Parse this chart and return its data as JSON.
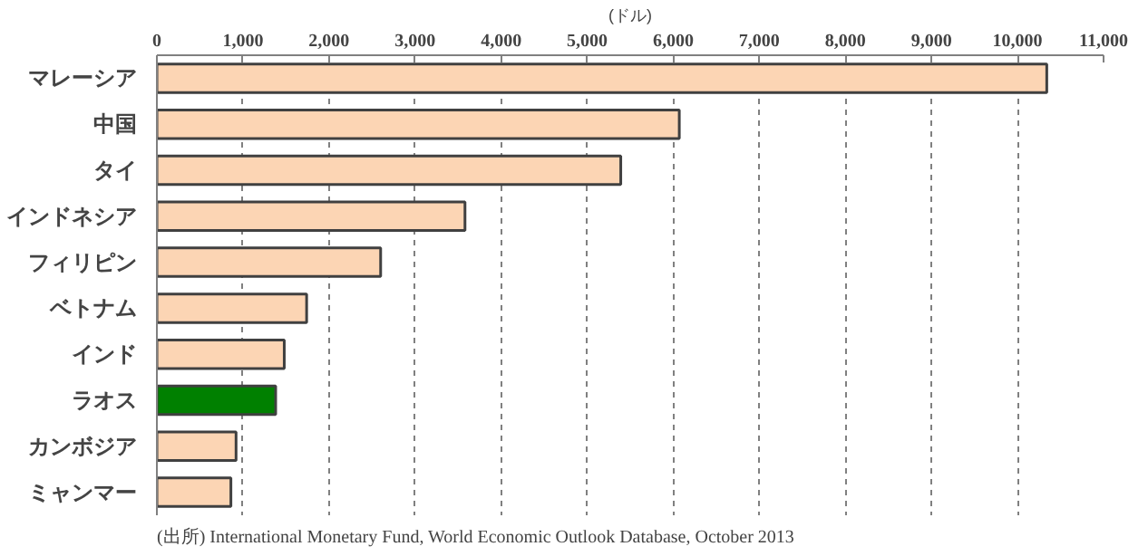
{
  "chart_data": {
    "type": "bar",
    "orientation": "horizontal",
    "xlabel": "(ドル)",
    "categories": [
      "マレーシア",
      "中国",
      "タイ",
      "インドネシア",
      "フィリピン",
      "ベトナム",
      "インド",
      "ラオス",
      "カンボジア",
      "ミャンマー"
    ],
    "values": [
      10340,
      6070,
      5390,
      3580,
      2600,
      1740,
      1480,
      1380,
      920,
      860
    ],
    "colors": [
      "#fcd5b4",
      "#fcd5b4",
      "#fcd5b4",
      "#fcd5b4",
      "#fcd5b4",
      "#fcd5b4",
      "#fcd5b4",
      "#008000",
      "#fcd5b4",
      "#fcd5b4"
    ],
    "xlim": [
      0,
      11000
    ],
    "xticks": [
      {
        "value": 0,
        "label": "0"
      },
      {
        "value": 1000,
        "label": "1,000"
      },
      {
        "value": 2000,
        "label": "2,000"
      },
      {
        "value": 3000,
        "label": "3,000"
      },
      {
        "value": 4000,
        "label": "4,000"
      },
      {
        "value": 5000,
        "label": "5,000"
      },
      {
        "value": 6000,
        "label": "6,000"
      },
      {
        "value": 7000,
        "label": "7,000"
      },
      {
        "value": 8000,
        "label": "8,000"
      },
      {
        "value": 9000,
        "label": "9,000"
      },
      {
        "value": 10000,
        "label": "10,000"
      },
      {
        "value": 11000,
        "label": "11,000"
      }
    ],
    "grid": "x",
    "annotations": [
      "(出所) International Monetary Fund, World Economic Outlook Database, October 2013"
    ]
  }
}
